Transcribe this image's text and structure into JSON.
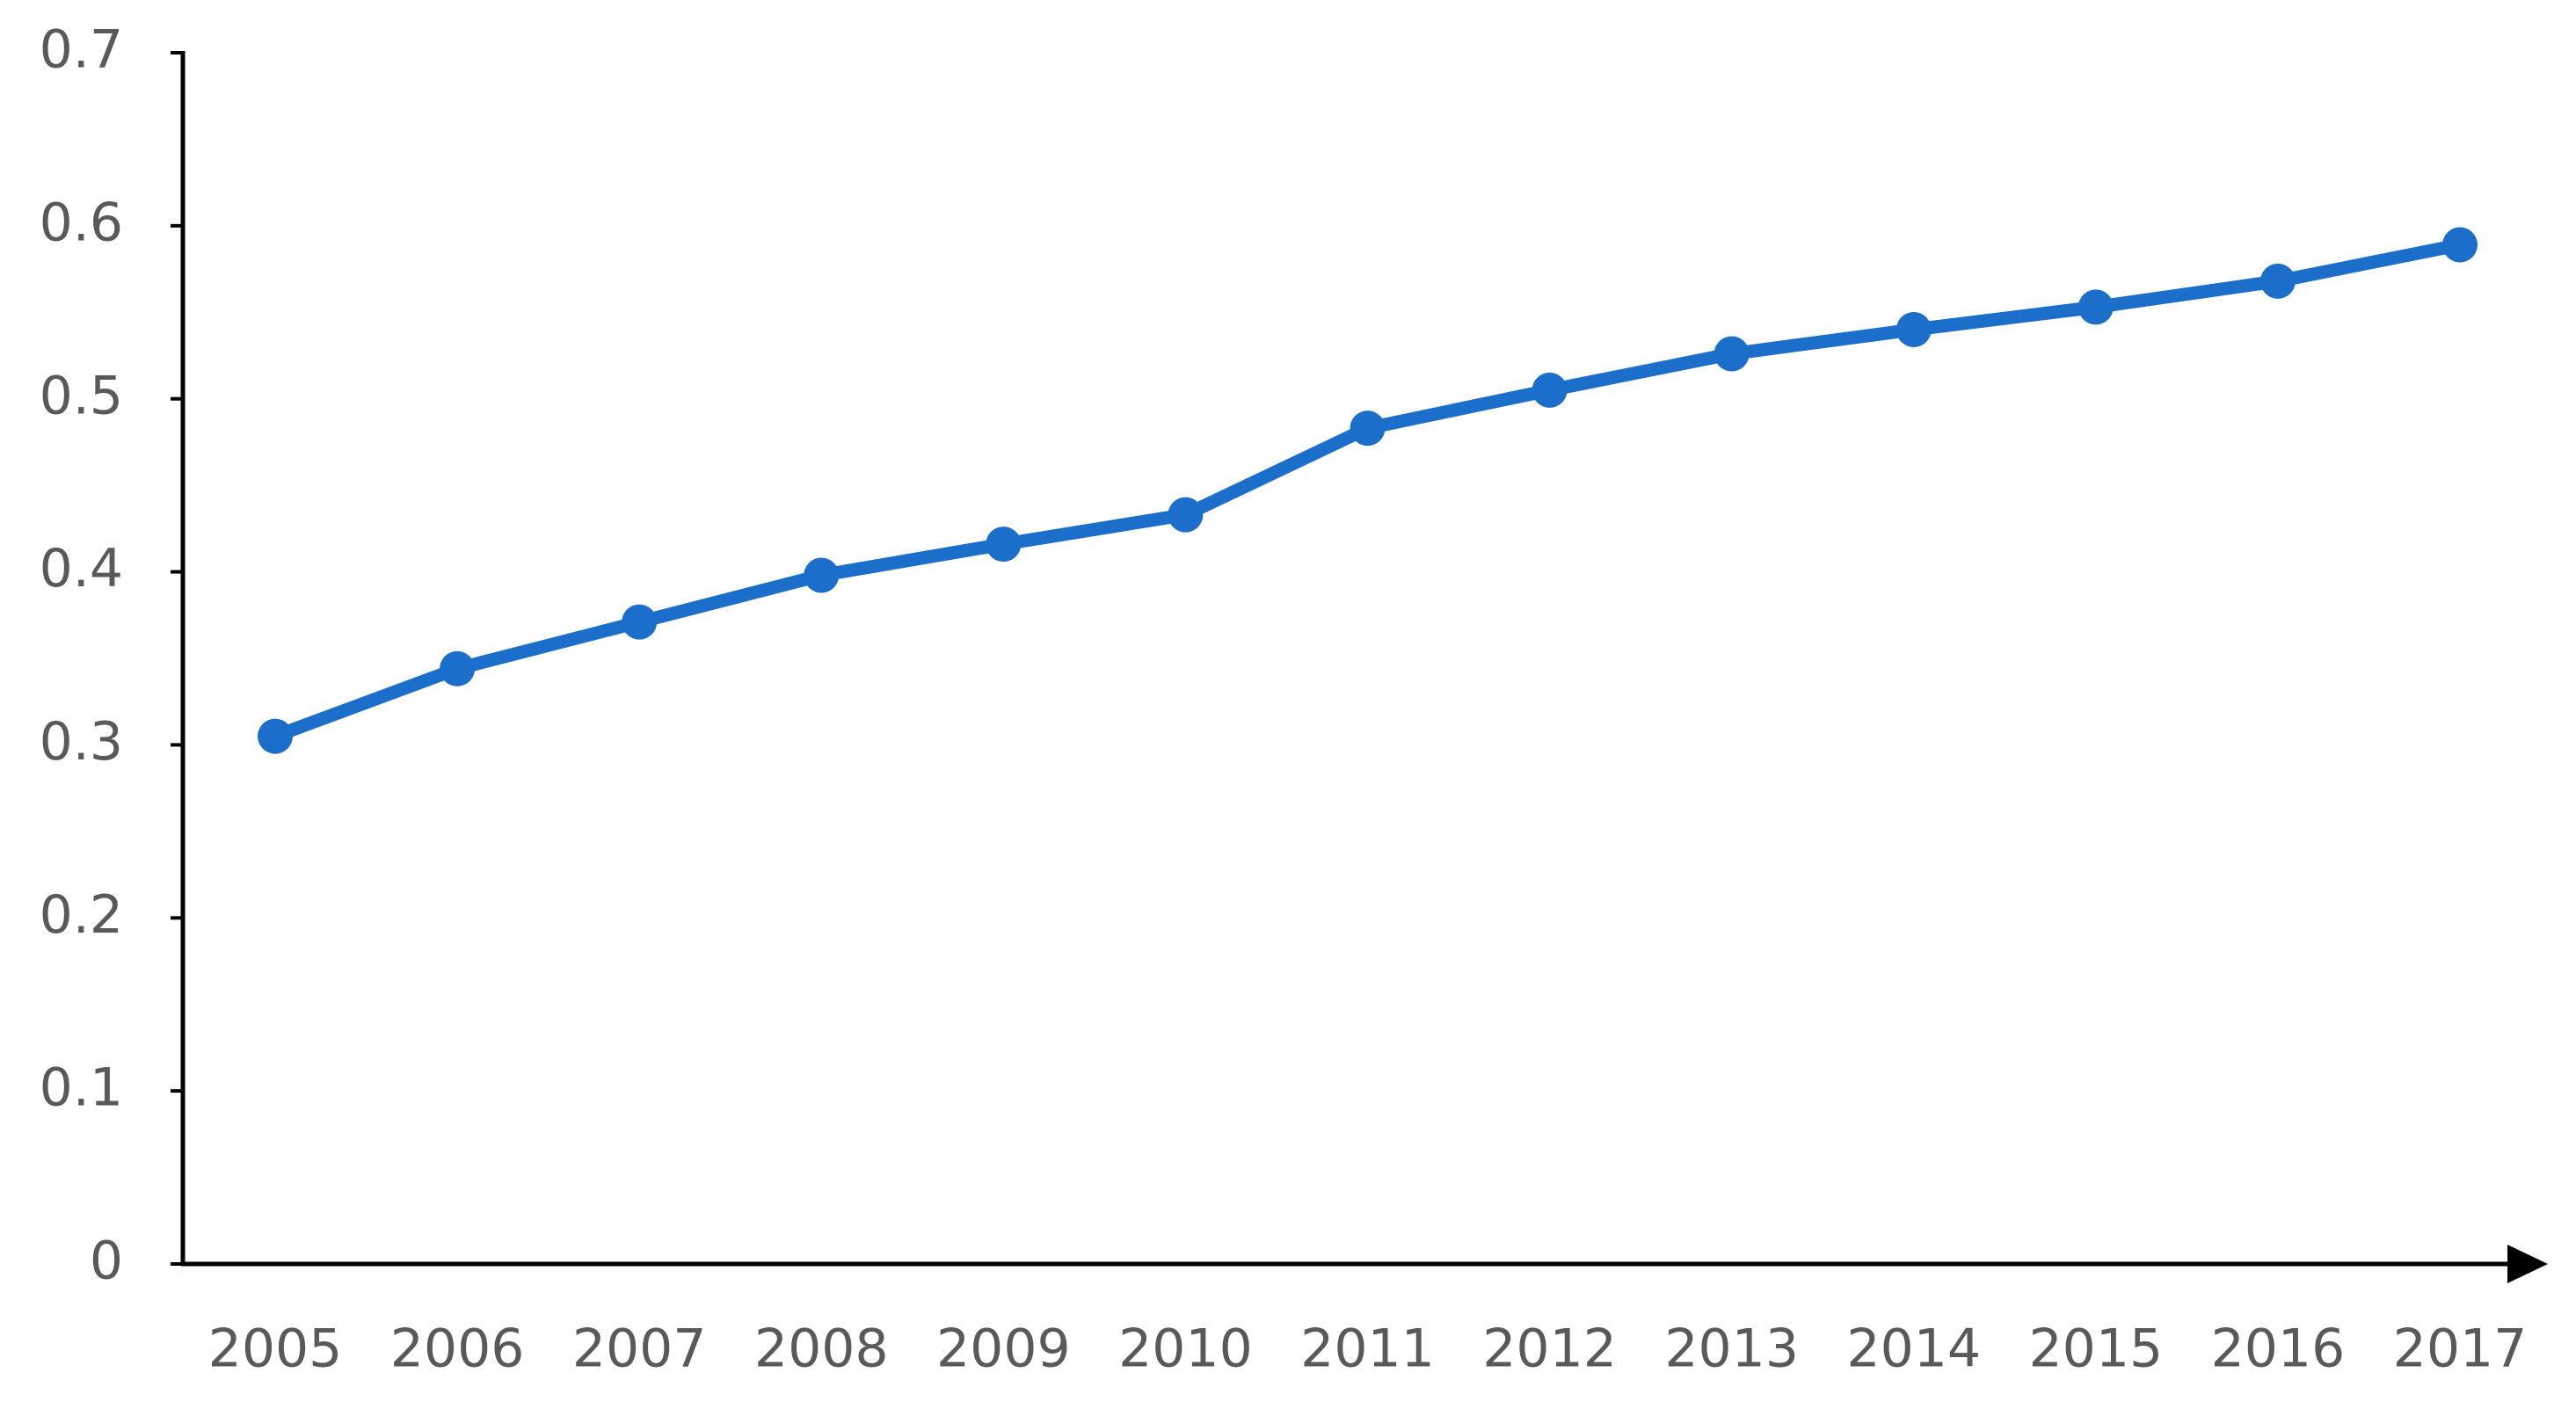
{
  "chart_data": {
    "type": "line",
    "categories": [
      "2005",
      "2006",
      "2007",
      "2008",
      "2009",
      "2010",
      "2011",
      "2012",
      "2013",
      "2014",
      "2015",
      "2016",
      "2017"
    ],
    "series": [
      {
        "color": "#1b6fcb",
        "values": [
          0.305,
          0.344,
          0.371,
          0.398,
          0.416,
          0.433,
          0.483,
          0.505,
          0.526,
          0.54,
          0.553,
          0.568,
          0.589
        ]
      }
    ],
    "ylim": [
      0,
      0.7
    ],
    "yticks": [
      0,
      0.1,
      0.2,
      0.3,
      0.4,
      0.5,
      0.6,
      0.7
    ],
    "grid": false
  }
}
